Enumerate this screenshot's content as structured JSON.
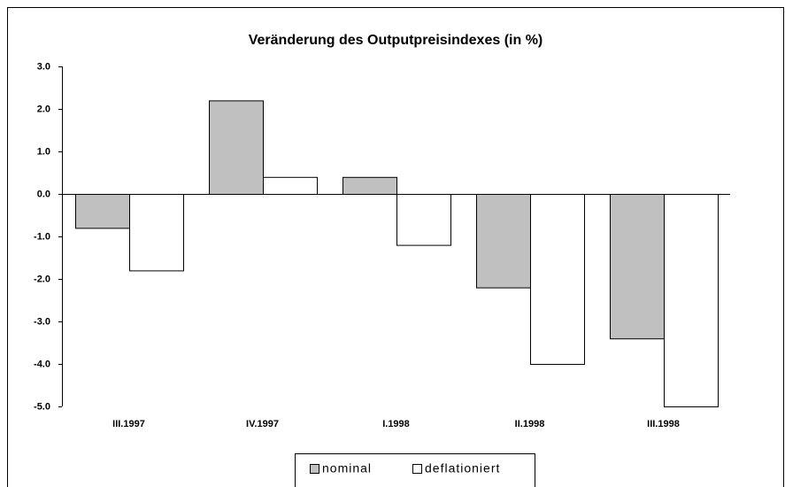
{
  "chart_data": {
    "type": "bar",
    "title": "Veränderung des Outputpreisindexes (in %)",
    "categories": [
      "III.1997",
      "IV.1997",
      "I.1998",
      "II.1998",
      "III.1998"
    ],
    "series": [
      {
        "name": "nominal",
        "color": "#c0c0c0",
        "values": [
          -0.8,
          2.2,
          0.4,
          -2.2,
          -3.4
        ]
      },
      {
        "name": "deflationiert",
        "color": "#ffffff",
        "values": [
          -1.8,
          0.4,
          -1.2,
          -4.0,
          -5.0
        ]
      }
    ],
    "ylim": [
      -5,
      3
    ],
    "yticks": [
      {
        "value": -5,
        "label": "-5.0"
      },
      {
        "value": -4,
        "label": "-4.0"
      },
      {
        "value": -3,
        "label": "-3.0"
      },
      {
        "value": -2,
        "label": "-2.0"
      },
      {
        "value": -1,
        "label": "-1.0"
      },
      {
        "value": 0,
        "label": "0.0"
      },
      {
        "value": 1,
        "label": "1.0"
      },
      {
        "value": 2,
        "label": "2.0"
      },
      {
        "value": 3,
        "label": "3.0"
      }
    ],
    "legend": "bottom"
  }
}
